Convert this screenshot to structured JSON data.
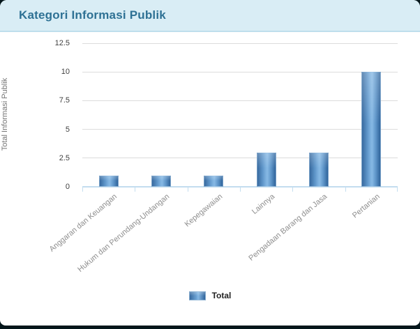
{
  "card": {
    "title": "Kategori Informasi Publik"
  },
  "chart_data": {
    "type": "bar",
    "title": "Kategori Informasi Publik",
    "categories": [
      "Anggaran dan Keuangan",
      "Hukum dan Perundang-Undangan",
      "Kepegawaian",
      "Lainnya",
      "Pengadaan Barang dan Jasa",
      "Pertanian"
    ],
    "series": [
      {
        "name": "Total",
        "values": [
          1,
          1,
          1,
          3,
          3,
          10
        ]
      }
    ],
    "xlabel": "",
    "ylabel": "Total Informasi Publik",
    "ylim": [
      0,
      12.5
    ],
    "y_ticks": [
      0,
      2.5,
      5,
      7.5,
      10,
      12.5
    ],
    "grid": true,
    "legend_position": "bottom",
    "colors": {
      "bar_edge": "#30649b",
      "bar_center": "#86b8e4",
      "gridline": "#dcdcdc",
      "axis": "#c3ddef",
      "header_bg": "#d9edf5",
      "header_text": "#2e7194"
    }
  }
}
